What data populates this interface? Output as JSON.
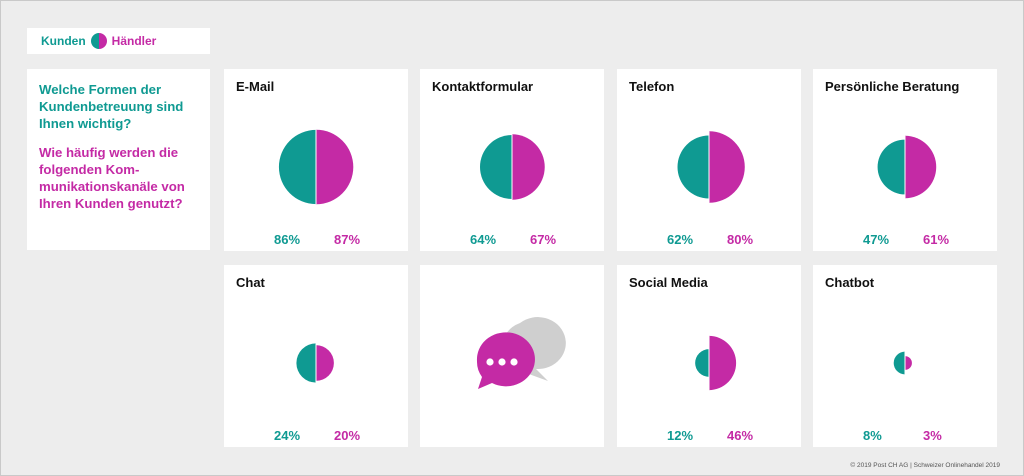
{
  "legend": {
    "kunden": "Kunden",
    "haendler": "Händler"
  },
  "question": {
    "kunden": "Welche Formen der Kundenbetreuung sind Ihnen wichtig?",
    "haendler": "Wie häufig werden die folgenden Kom-munikationskanäle von Ihren Kunden genutzt?"
  },
  "colors": {
    "kunden": "#0f9a92",
    "haendler": "#c42aa5",
    "bubble_back": "#cfcfcf"
  },
  "chart_data": {
    "type": "pie",
    "series": [
      {
        "name": "Kunden",
        "values": [
          86,
          64,
          62,
          47,
          24,
          12,
          8
        ]
      },
      {
        "name": "Händler",
        "values": [
          87,
          67,
          80,
          61,
          20,
          46,
          3
        ]
      }
    ],
    "categories": [
      "E-Mail",
      "Kontaktformular",
      "Telefon",
      "Persönliche Beratung",
      "Chat",
      "Social Media",
      "Chatbot"
    ],
    "cards": [
      {
        "title": "E-Mail",
        "kunden": 86,
        "haendler": 87,
        "kunden_label": "86%",
        "haendler_label": "87%"
      },
      {
        "title": "Kontaktformular",
        "kunden": 64,
        "haendler": 67,
        "kunden_label": "64%",
        "haendler_label": "67%"
      },
      {
        "title": "Telefon",
        "kunden": 62,
        "haendler": 80,
        "kunden_label": "62%",
        "haendler_label": "80%"
      },
      {
        "title": "Persönliche Beratung",
        "kunden": 47,
        "haendler": 61,
        "kunden_label": "47%",
        "haendler_label": "61%"
      },
      {
        "title": "Chat",
        "kunden": 24,
        "haendler": 20,
        "kunden_label": "24%",
        "haendler_label": "20%"
      },
      {
        "title": "Social Media",
        "kunden": 12,
        "haendler": 46,
        "kunden_label": "12%",
        "haendler_label": "46%"
      },
      {
        "title": "Chatbot",
        "kunden": 8,
        "haendler": 3,
        "kunden_label": "8%",
        "haendler_label": "3%"
      }
    ]
  },
  "footer": "© 2019 Post CH AG | Schweizer Onlinehandel 2019"
}
